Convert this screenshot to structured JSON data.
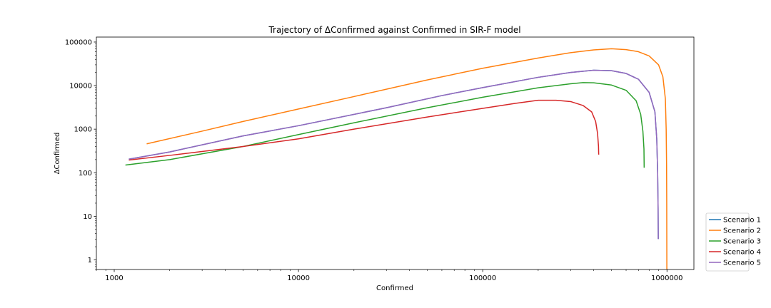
{
  "chart_data": {
    "type": "line",
    "title": "Trajectory of ΔConfirmed against Confirmed in SIR-F model",
    "xlabel": "Confirmed",
    "ylabel": "ΔConfirmed",
    "xscale": "log",
    "yscale": "log",
    "xlim": [
      800,
      1400000
    ],
    "ylim": [
      0.6,
      130000
    ],
    "xticks": [
      1000,
      10000,
      100000,
      1000000
    ],
    "xtick_labels": [
      "1000",
      "10000",
      "100000",
      "1000000"
    ],
    "yticks": [
      1,
      10,
      100,
      1000,
      10000,
      100000
    ],
    "ytick_labels": [
      "1",
      "10",
      "100",
      "1000",
      "10000",
      "100000"
    ],
    "grid": false,
    "legend_position": "outside lower right",
    "series": [
      {
        "name": "Scenario 1",
        "color": "#1f77b4",
        "points": [
          [
            1200,
            205
          ],
          [
            2000,
            300
          ],
          [
            5000,
            700
          ],
          [
            10000,
            1200
          ],
          [
            30000,
            3100
          ],
          [
            60000,
            5900
          ],
          [
            100000,
            9000
          ],
          [
            200000,
            15500
          ],
          [
            300000,
            20000
          ],
          [
            400000,
            22500
          ],
          [
            500000,
            22000
          ],
          [
            600000,
            19000
          ],
          [
            700000,
            14000
          ],
          [
            800000,
            7000
          ],
          [
            860000,
            2500
          ],
          [
            880000,
            600
          ],
          [
            890000,
            100
          ],
          [
            895000,
            15
          ],
          [
            897000,
            3
          ]
        ]
      },
      {
        "name": "Scenario 2",
        "color": "#ff7f0e",
        "points": [
          [
            1500,
            460
          ],
          [
            3000,
            900
          ],
          [
            5000,
            1500
          ],
          [
            10000,
            2900
          ],
          [
            20000,
            5600
          ],
          [
            50000,
            13500
          ],
          [
            100000,
            25000
          ],
          [
            200000,
            43000
          ],
          [
            300000,
            57000
          ],
          [
            400000,
            66000
          ],
          [
            500000,
            70000
          ],
          [
            600000,
            67000
          ],
          [
            700000,
            60000
          ],
          [
            800000,
            48000
          ],
          [
            900000,
            30000
          ],
          [
            950000,
            16000
          ],
          [
            980000,
            5000
          ],
          [
            990000,
            1000
          ],
          [
            995000,
            150
          ],
          [
            997000,
            20
          ],
          [
            998000,
            2
          ],
          [
            998500,
            0.5
          ]
        ]
      },
      {
        "name": "Scenario 3",
        "color": "#2ca02c",
        "points": [
          [
            1150,
            150
          ],
          [
            2000,
            200
          ],
          [
            5000,
            400
          ],
          [
            10000,
            750
          ],
          [
            20000,
            1400
          ],
          [
            50000,
            3100
          ],
          [
            100000,
            5400
          ],
          [
            200000,
            8900
          ],
          [
            300000,
            11000
          ],
          [
            350000,
            11700
          ],
          [
            400000,
            11600
          ],
          [
            500000,
            10300
          ],
          [
            600000,
            7800
          ],
          [
            680000,
            4500
          ],
          [
            720000,
            2200
          ],
          [
            740000,
            900
          ],
          [
            750000,
            350
          ],
          [
            752000,
            130
          ]
        ]
      },
      {
        "name": "Scenario 4",
        "color": "#d62728",
        "points": [
          [
            1200,
            195
          ],
          [
            2000,
            250
          ],
          [
            5000,
            400
          ],
          [
            10000,
            600
          ],
          [
            20000,
            1000
          ],
          [
            50000,
            1900
          ],
          [
            100000,
            3000
          ],
          [
            150000,
            3900
          ],
          [
            200000,
            4600
          ],
          [
            250000,
            4600
          ],
          [
            300000,
            4300
          ],
          [
            350000,
            3500
          ],
          [
            390000,
            2500
          ],
          [
            410000,
            1500
          ],
          [
            420000,
            800
          ],
          [
            425000,
            400
          ],
          [
            426000,
            260
          ]
        ]
      },
      {
        "name": "Scenario 5",
        "color": "#9467bd",
        "points": [
          [
            1200,
            205
          ],
          [
            2000,
            300
          ],
          [
            5000,
            700
          ],
          [
            10000,
            1200
          ],
          [
            30000,
            3100
          ],
          [
            60000,
            5900
          ],
          [
            100000,
            9000
          ],
          [
            200000,
            15500
          ],
          [
            300000,
            20000
          ],
          [
            400000,
            22500
          ],
          [
            500000,
            22000
          ],
          [
            600000,
            19000
          ],
          [
            700000,
            14000
          ],
          [
            800000,
            7000
          ],
          [
            860000,
            2500
          ],
          [
            880000,
            600
          ],
          [
            890000,
            100
          ],
          [
            895000,
            15
          ],
          [
            897000,
            3
          ]
        ]
      }
    ]
  }
}
